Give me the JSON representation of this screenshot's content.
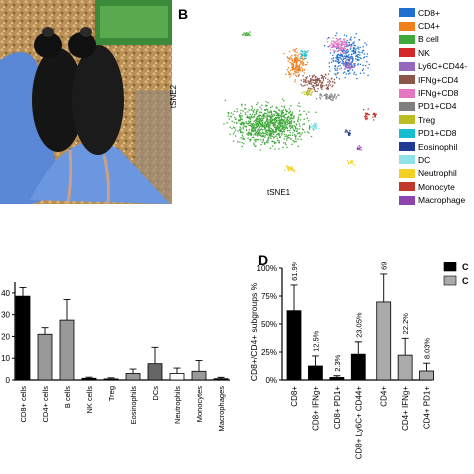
{
  "panels": {
    "b": "B",
    "d": "D"
  },
  "tsne": {
    "xlabel": "tSNE1",
    "ylabel": "tSNE2",
    "legend": [
      {
        "label": "CD8+",
        "color": "#1f6fd1"
      },
      {
        "label": "CD4+",
        "color": "#f07f1e"
      },
      {
        "label": "B cell",
        "color": "#41a83b"
      },
      {
        "label": "NK",
        "color": "#d62728"
      },
      {
        "label": "Ly6C+CD44-",
        "color": "#9467bd"
      },
      {
        "label": "IFNg+CD4",
        "color": "#8c564b"
      },
      {
        "label": "IFNg+CD8",
        "color": "#e377c2"
      },
      {
        "label": "PD1+CD4",
        "color": "#7f7f7f"
      },
      {
        "label": "Treg",
        "color": "#bcbd22"
      },
      {
        "label": "PD1+CD8",
        "color": "#17becf"
      },
      {
        "label": "Eosinophil",
        "color": "#1f3a93"
      },
      {
        "label": "DC",
        "color": "#8fe3e8"
      },
      {
        "label": "Neutrophil",
        "color": "#f2d024"
      },
      {
        "label": "Monocyte",
        "color": "#c0392b"
      },
      {
        "label": "Macrophage",
        "color": "#8e44ad"
      }
    ]
  },
  "chart_data": [
    {
      "type": "bar",
      "categories": [
        "CD8+ cells",
        "CD4+ cells",
        "B cells",
        "NK cells",
        "Treg",
        "Eosinophils",
        "DCs",
        "Neutrophils",
        "Monocytes",
        "Macrophages"
      ],
      "values": [
        38.5,
        21,
        27.5,
        0.8,
        0.5,
        3,
        7.5,
        3,
        4,
        0.6
      ],
      "errors": [
        4,
        3,
        9.5,
        0.5,
        0.5,
        2,
        7.5,
        2.5,
        5,
        0.6
      ],
      "colors": [
        "#000000",
        "#999999",
        "#999999",
        "#000000",
        "#000000",
        "#999999",
        "#666666",
        "#ffffff",
        "#999999",
        "#000000"
      ],
      "ytick_labels": [
        "0",
        "10",
        "20",
        "30",
        "40"
      ],
      "ylim": [
        0,
        45
      ]
    },
    {
      "type": "bar",
      "ylabel": "CD8+/CD4+ subgroups %",
      "categories": [
        "CD8+",
        "CD8+ IFNg+",
        "CD8+ PD1+",
        "CD8+ Ly6C+ CD44+",
        "CD4+",
        "CD4+ IFNg+",
        "CD4+ PD1+"
      ],
      "values": [
        61.9,
        12.5,
        2.3,
        23.05,
        69.7,
        22.2,
        8.03
      ],
      "errors": [
        23,
        9,
        1.5,
        11,
        25,
        15,
        7
      ],
      "value_labels": [
        "61.9%",
        "12.5%",
        "2.3%",
        "23.05%",
        "69.7%",
        "22.2%",
        "8.03%"
      ],
      "colors": [
        "#000000",
        "#000000",
        "#000000",
        "#000000",
        "#aaaaaa",
        "#aaaaaa",
        "#aaaaaa"
      ],
      "ytick_labels": [
        "0%",
        "25%",
        "50%",
        "75%",
        "100%"
      ],
      "ylim": [
        0,
        100
      ],
      "legend": [
        {
          "label": "C",
          "color": "#000000"
        },
        {
          "label": "C",
          "color": "#aaaaaa"
        }
      ]
    }
  ]
}
